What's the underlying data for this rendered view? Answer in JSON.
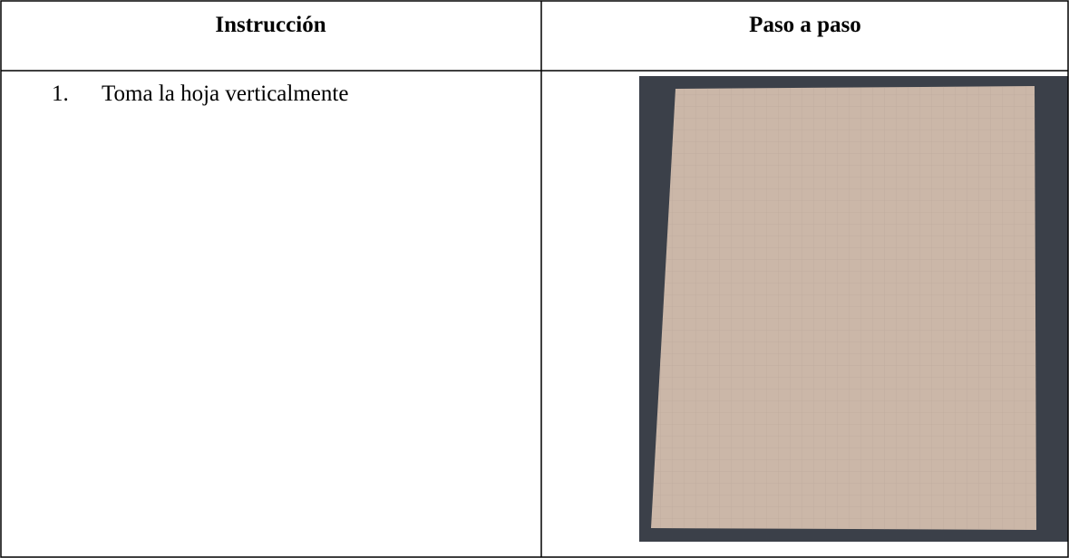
{
  "table": {
    "headers": [
      "Instrucción",
      "Paso a paso"
    ],
    "rows": [
      [
        {
          "marker": "1.",
          "text": "Toma la hoja verticalmente"
        }
      ]
    ]
  }
}
